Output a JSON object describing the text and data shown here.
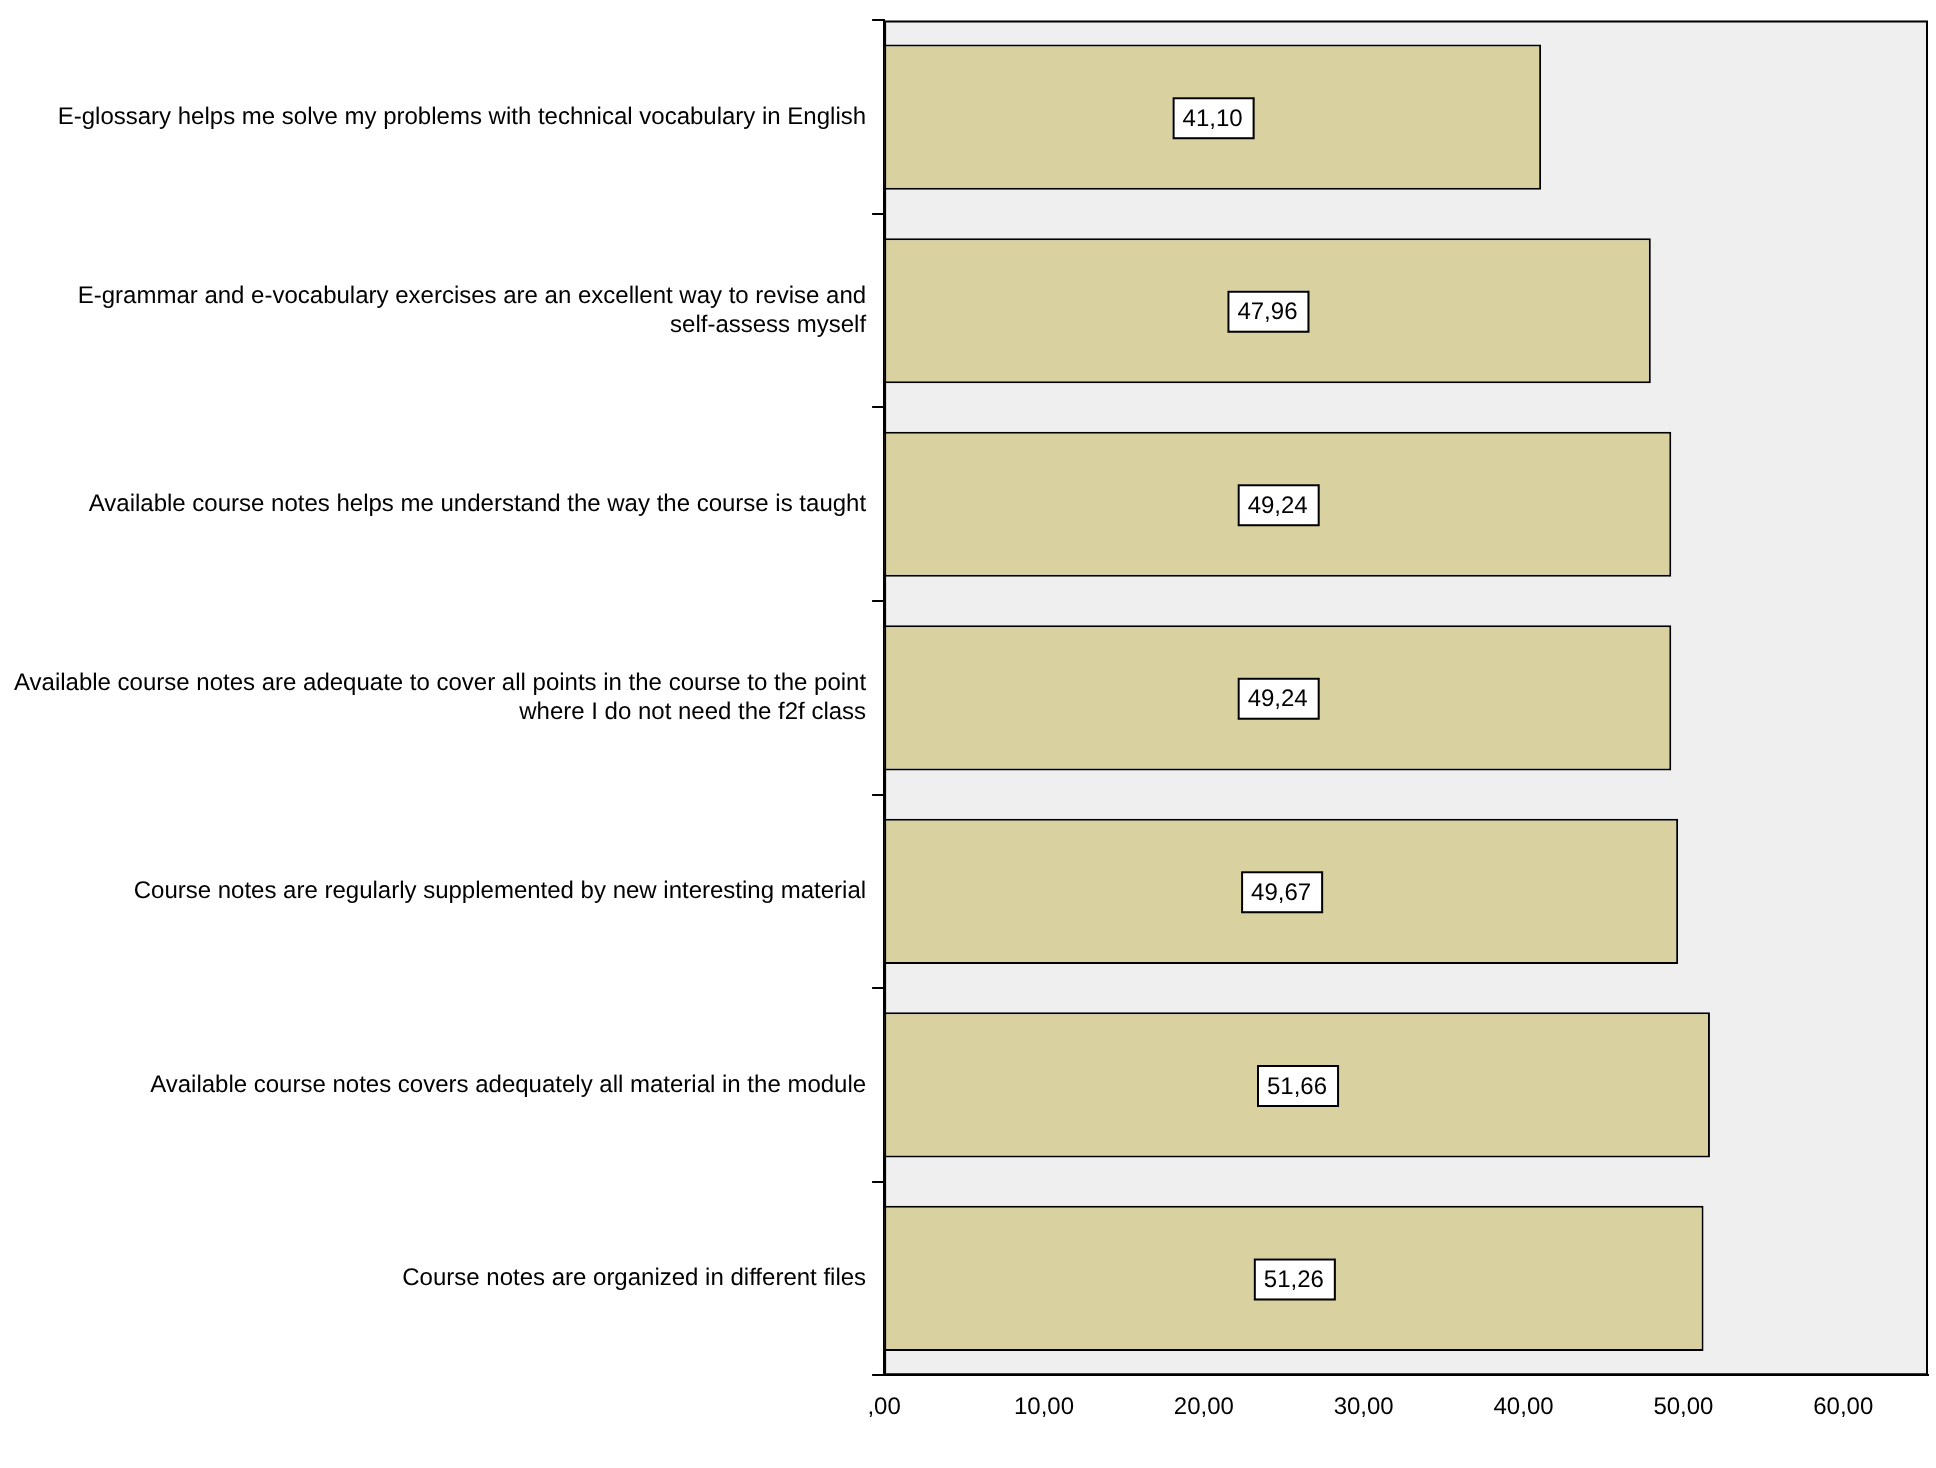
{
  "chart_data": {
    "type": "bar",
    "orientation": "horizontal",
    "categories": [
      "E-glossary helps me solve my problems with technical vocabulary in English",
      "E-grammar and e-vocabulary exercises are an excellent way to revise and self-assess myself",
      "Available course notes helps me understand the way the course is taught",
      "Available course notes are adequate to cover all points in the course to the point where I do not need the f2f class",
      "Course notes are regularly supplemented by new interesting material",
      "Available course notes covers adequately all material in the module",
      "Course notes are organized in different files"
    ],
    "values": [
      41.1,
      47.96,
      49.24,
      49.24,
      49.67,
      51.66,
      51.26
    ],
    "value_labels": [
      "41,10",
      "47,96",
      "49,24",
      "49,24",
      "49,67",
      "51,66",
      "51,26"
    ],
    "color": "#d9d19f",
    "xlim": [
      0,
      65.3
    ],
    "xticks": [
      {
        "value": 0,
        "label": ",00"
      },
      {
        "value": 10,
        "label": "10,00"
      },
      {
        "value": 20,
        "label": "20,00"
      },
      {
        "value": 30,
        "label": "30,00"
      },
      {
        "value": 40,
        "label": "40,00"
      },
      {
        "value": 50,
        "label": "50,00"
      },
      {
        "value": 60,
        "label": "60,00"
      }
    ],
    "grid": false,
    "legend": false
  }
}
